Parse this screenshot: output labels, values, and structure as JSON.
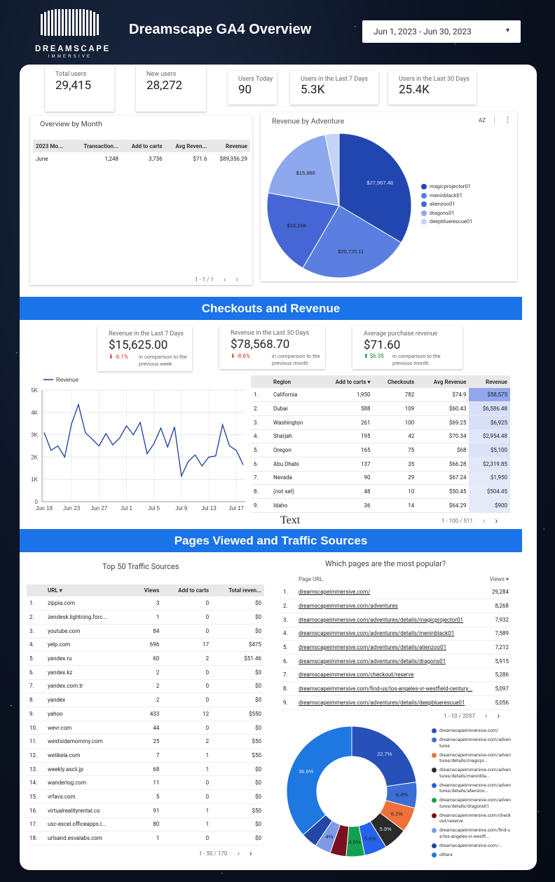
{
  "header": {
    "title": "Dreamscape GA4 Overview",
    "logo_text": "DREAMSCAPE",
    "logo_sub": "IMMERSIVE",
    "date_range": "Jun 1, 2023 - Jun 30, 2023"
  },
  "scorecards": [
    {
      "label": "Total users",
      "value": "29,415"
    },
    {
      "label": "New users",
      "value": "28,272"
    },
    {
      "label": "Users Today",
      "value": "90"
    },
    {
      "label": "Users in the Last 7 Days",
      "value": "5.3K"
    },
    {
      "label": "Users in the Last 30 Days",
      "value": "25.4K"
    }
  ],
  "overview_by_month": {
    "title": "Overview by Month",
    "columns": [
      "2023 Mo...",
      "Transaction...",
      "Add to carts",
      "Avg Reven...",
      "Revenue"
    ],
    "rows": [
      [
        "June",
        "1,248",
        "3,736",
        "$71.6",
        "$89,356.29"
      ]
    ],
    "pager": "1 - 1 / 1"
  },
  "revenue_by_adventure": {
    "title": "Revenue by Adventure",
    "sort_icon": "AZ"
  },
  "section1": {
    "title": "Checkouts and Revenue"
  },
  "revenue_cards": [
    {
      "label": "Revenue in the Last 7 Days",
      "value": "$15,625.00",
      "delta": "-6.1%",
      "direction": "down",
      "note": "in comparison to the previous week"
    },
    {
      "label": "Revenue in the Last 30 Days",
      "value": "$78,568.70",
      "delta": "-8.6%",
      "direction": "down",
      "note": "in comparison to the previous month"
    },
    {
      "label": "Average purchase revenue",
      "value": "$71.60",
      "delta": "$6.35",
      "direction": "up",
      "note": "in comparison to the previous month"
    }
  ],
  "region_table": {
    "columns": [
      "Region",
      "Add to carts",
      "Checkouts",
      "Avg Revenue",
      "Revenue"
    ],
    "rows": [
      [
        "1.",
        "California",
        "1,950",
        "782",
        "$74.9",
        "$58,575"
      ],
      [
        "2.",
        "Dubai",
        "588",
        "109",
        "$60.43",
        "$6,586.48"
      ],
      [
        "3.",
        "Washington",
        "261",
        "100",
        "$69.25",
        "$6,925"
      ],
      [
        "4.",
        "Sharjah",
        "195",
        "42",
        "$70.34",
        "$2,954.48"
      ],
      [
        "5.",
        "Oregon",
        "165",
        "75",
        "$68",
        "$5,100"
      ],
      [
        "6.",
        "Abu Dhabi",
        "137",
        "35",
        "$66.28",
        "$2,319.85"
      ],
      [
        "7.",
        "Nevada",
        "90",
        "29",
        "$67.24",
        "$1,950"
      ],
      [
        "8.",
        "(not set)",
        "48",
        "10",
        "$50.45",
        "$504.45"
      ],
      [
        "9.",
        "Idaho",
        "36",
        "14",
        "$64.29",
        "$900"
      ]
    ],
    "pager": "1 - 100 / 511",
    "text_label": "Text"
  },
  "section2": {
    "title": "Pages Viewed and Traffic Sources"
  },
  "traffic_table": {
    "title": "Top 50 Traffic Sources",
    "columns": [
      "URL",
      "Views",
      "Add to carts",
      "Total reven..."
    ],
    "rows": [
      [
        "1.",
        "zippia.com",
        "3",
        "0",
        "$0"
      ],
      [
        "2.",
        "zendesk.lightning.forc...",
        "1",
        "0",
        "$0"
      ],
      [
        "3.",
        "youtube.com",
        "84",
        "0",
        "$0"
      ],
      [
        "4.",
        "yelp.com",
        "696",
        "17",
        "$475"
      ],
      [
        "5.",
        "yandex.ru",
        "60",
        "2",
        "$51.46"
      ],
      [
        "6.",
        "yandex.kz",
        "2",
        "0",
        "$0"
      ],
      [
        "7.",
        "yandex.com.tr",
        "2",
        "0",
        "$0"
      ],
      [
        "8.",
        "yandex",
        "2",
        "0",
        "$0"
      ],
      [
        "9.",
        "yahoo",
        "433",
        "12",
        "$550"
      ],
      [
        "10.",
        "wevr.com",
        "44",
        "0",
        "$0"
      ],
      [
        "11.",
        "westsidemommy.com",
        "25",
        "2",
        "$50"
      ],
      [
        "12.",
        "welikela.com",
        "7",
        "1",
        "$50"
      ],
      [
        "13.",
        "weekly.ascii.jp",
        "68",
        "1",
        "$0"
      ],
      [
        "14.",
        "wanderlog.com",
        "11",
        "0",
        "$0"
      ],
      [
        "15.",
        "vrfavs.com",
        "5",
        "0",
        "$0"
      ],
      [
        "16.",
        "virtualrealityrental.co",
        "91",
        "1",
        "$50"
      ],
      [
        "17.",
        "usc-excel.officeapps.l...",
        "80",
        "1",
        "$0"
      ],
      [
        "18.",
        "urlsand.esvalabs.com",
        "1",
        "0",
        "$0"
      ]
    ],
    "pager": "1 - 50 / 170"
  },
  "pages_table": {
    "title": "Which pages are the most popular?",
    "columns": [
      "Page URL",
      "Views"
    ],
    "rows": [
      [
        "1.",
        "dreamscapeimmersive.com/",
        "29,284"
      ],
      [
        "2.",
        "dreamscapeimmersive.com/adventures",
        "8,268"
      ],
      [
        "3.",
        "dreamscapeimmersive.com/adventures/details/magicprojector01",
        "7,932"
      ],
      [
        "4.",
        "dreamscapeimmersive.com/adventures/details/meninblack01",
        "7,589"
      ],
      [
        "5.",
        "dreamscapeimmersive.com/adventures/details/alienzoo01",
        "7,212"
      ],
      [
        "6.",
        "dreamscapeimmersive.com/adventures/details/dragons01",
        "5,915"
      ],
      [
        "7.",
        "dreamscapeimmersive.com/checkout/reserve",
        "5,286"
      ],
      [
        "8.",
        "dreamscapeimmersive.com/find-us/los-angeles-vr-westfield-century...",
        "5,097"
      ],
      [
        "9.",
        "dreamscapeimmersive.com/adventures/details/deepbluerescue01",
        "5,056"
      ]
    ],
    "pager": "1 - 10 / 2057"
  },
  "chart_data": [
    {
      "type": "pie",
      "title": "Revenue by Adventure",
      "categories": [
        "magicprojector01",
        "meninblack01",
        "alienzoo01",
        "dragons01",
        "deepbluerescue01"
      ],
      "values": [
        27967.48,
        20725.11,
        16168,
        15886,
        2609
      ],
      "labels": [
        "$27,967.48",
        "$20,725.11",
        "$16,168",
        "$15,886",
        ""
      ],
      "colors": [
        "#2146b0",
        "#5b7fe0",
        "#4566d4",
        "#8ea8ee",
        "#c5d3f8"
      ],
      "legend": "right"
    },
    {
      "type": "line",
      "series": [
        {
          "name": "Revenue",
          "color": "#1c3d9e",
          "values": [
            3100,
            2300,
            2500,
            2000,
            3500,
            4350,
            3100,
            2800,
            2500,
            3050,
            2550,
            2850,
            3400,
            3000,
            3550,
            2150,
            2600,
            3300,
            2450,
            3350,
            1150,
            1800,
            2100,
            1600,
            2000,
            2050,
            3450,
            2500,
            2300,
            1650
          ]
        }
      ],
      "x": [
        "Jun 19",
        "Jun 20",
        "Jun 21",
        "Jun 22",
        "Jun 23",
        "Jun 24",
        "Jun 25",
        "Jun 26",
        "Jun 27",
        "Jun 28",
        "Jun 29",
        "Jun 30",
        "Jul 1",
        "Jul 2",
        "Jul 3",
        "Jul 4",
        "Jul 5",
        "Jul 6",
        "Jul 7",
        "Jul 8",
        "Jul 9",
        "Jul 10",
        "Jul 11",
        "Jul 12",
        "Jul 13",
        "Jul 14",
        "Jul 15",
        "Jul 16",
        "Jul 17",
        "Jul 18"
      ],
      "x_ticks": [
        "Jun 19",
        "Jun 23",
        "Jun 27",
        "Jul 1",
        "Jul 5",
        "Jul 9",
        "Jul 13",
        "Jul 17"
      ],
      "y_ticks": [
        "0",
        "1K",
        "2K",
        "3K",
        "4K",
        "5K"
      ],
      "ylim": [
        0,
        5000
      ],
      "legend": "top-left",
      "grid": true
    },
    {
      "type": "pie",
      "donut": true,
      "categories": [
        "dreamscapeimmersive.com/",
        "dreamscapeimmersive.com/adventures",
        "dreamscapeimmersive.com/adventures/details/magicpr...",
        "dreamscapeimmersive.com/adventures/details/meninbla...",
        "dreamscapeimmersive.com/adventures/details/alienzoo...",
        "dreamscapeimmersive.com/adventures/details/dragons01",
        "dreamscapeimmersive.com/checkout/reserve",
        "dreamscapeimmersive.com/find-us/los-angeles-vr-westfi...",
        "dreamscapeimmersive.com/...",
        "others"
      ],
      "values": [
        22.7,
        6.4,
        6.2,
        5.9,
        5.6,
        4.6,
        4.0,
        4.0,
        4.0,
        36.6
      ],
      "labels": [
        "22.7%",
        "6.4%",
        "6.2%",
        "5.9%",
        "5.6%",
        "4.6%",
        "",
        "4%",
        "",
        "36.6%"
      ],
      "colors": [
        "#2750b8",
        "#3b6fd6",
        "#f0703a",
        "#2b2b2b",
        "#2563eb",
        "#12a150",
        "#7a0f1f",
        "#7b9be6",
        "#2347a8",
        "#1e78e0"
      ],
      "legend": "right"
    }
  ]
}
